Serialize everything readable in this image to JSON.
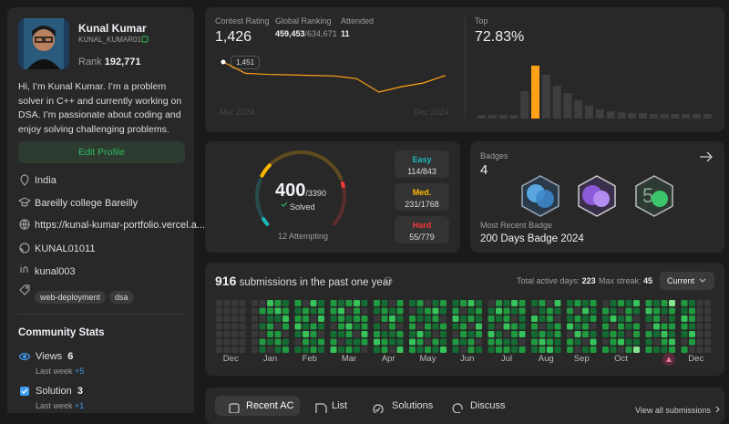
{
  "profile": {
    "name": "Kunal Kumar",
    "username": "KUNAL_KUMAR01",
    "rank_label": "Rank",
    "rank": "192,771",
    "bio": "Hi, I’m Kunal Kumar. I’m a problem solver in C++ and currently working on DSA. I’m passionate about coding and enjoy solving challenging problems.",
    "edit_button": "Edit Profile",
    "location": "India",
    "school": "Bareilly college Bareilly",
    "website": "https://kunal-kumar-portfolio.vercel.a...",
    "github": "KUNAL01011",
    "linkedin": "kunal003",
    "tags": [
      "web-deployment",
      "dsa"
    ]
  },
  "community": {
    "title": "Community Stats",
    "stats": [
      {
        "name": "Views",
        "value": "6",
        "period": "Last week",
        "change": "+5"
      },
      {
        "name": "Solution",
        "value": "3",
        "period": "Last week",
        "change": "+1"
      }
    ]
  },
  "contest": {
    "rating_label": "Contest Rating",
    "rating": "1,426",
    "ranking_label": "Global Ranking",
    "ranking": "459,453",
    "ranking_total": "/634,671",
    "attended_label": "Attended",
    "attended": "11",
    "chart": {
      "type": "line",
      "color": "#ffa116",
      "values": [
        1451,
        1430,
        1428,
        1427,
        1426,
        1425,
        1420,
        1395,
        1405,
        1412,
        1426
      ],
      "x_labels": [
        "Mar 2024",
        "Dec 2024"
      ],
      "tooltip": "1,451"
    },
    "top_label": "Top",
    "top": "72.83%",
    "histogram": {
      "type": "bar",
      "color": "#ffa116",
      "bar_color": "#3e3e3e",
      "highlight": 5,
      "values": [
        4,
        4,
        4,
        4,
        30,
        58,
        48,
        36,
        28,
        20,
        14,
        10,
        8,
        7,
        6,
        6,
        5,
        5,
        5,
        5,
        5,
        5
      ]
    }
  },
  "problems": {
    "solved": 400,
    "total": "/3390",
    "solved_label": "Solved",
    "attempting": "12 Attempting",
    "difficulties": [
      {
        "name": "Easy",
        "solved": 114,
        "total": 843,
        "label": "114/843",
        "color": "#1cbaba"
      },
      {
        "name": "Med.",
        "solved": 231,
        "total": 1768,
        "label": "231/1768",
        "color": "#ffb700"
      },
      {
        "name": "Hard",
        "solved": 55,
        "total": 779,
        "label": "55/779",
        "color": "#f63737"
      }
    ]
  },
  "badges": {
    "title": "Badges",
    "count": "4",
    "recent_label": "Most Recent Badge",
    "recent": "200 Days Badge 2024"
  },
  "heatmap": {
    "count": "916",
    "text": "submissions in the past one year",
    "active_label": "Total active days:",
    "active": "223",
    "streak_label": "Max streak:",
    "streak": "45",
    "dropdown": "Current",
    "level_colors": [
      "#393939",
      "#146c33",
      "#1f9a3f",
      "#35c35a",
      "#86e38f"
    ],
    "months": [
      {
        "label": "Dec",
        "weeks": [
          [
            0,
            0,
            0,
            0,
            0,
            0,
            0
          ],
          [
            0,
            0,
            0,
            0,
            0,
            0,
            0
          ],
          [
            0,
            0,
            0,
            0,
            0,
            0,
            0
          ],
          [
            0,
            0,
            0,
            0,
            0,
            0,
            0
          ]
        ]
      },
      {
        "label": "Jan",
        "weeks": [
          [
            0,
            0,
            0,
            0,
            0,
            0,
            0
          ],
          [
            0,
            2,
            0,
            1,
            0,
            2,
            1
          ],
          [
            3,
            2,
            1,
            2,
            2,
            1,
            0
          ],
          [
            2,
            3,
            1,
            0,
            2,
            2,
            1
          ],
          [
            1,
            2,
            3,
            2,
            0,
            1,
            2
          ]
        ]
      },
      {
        "label": "Feb",
        "weeks": [
          [
            2,
            1,
            2,
            3,
            1,
            0,
            1
          ],
          [
            0,
            2,
            2,
            1,
            3,
            2,
            1
          ],
          [
            3,
            1,
            0,
            2,
            2,
            1,
            2
          ],
          [
            1,
            2,
            3,
            1,
            0,
            2,
            1
          ]
        ]
      },
      {
        "label": "Mar",
        "weeks": [
          [
            2,
            2,
            1,
            0,
            1,
            2,
            3
          ],
          [
            1,
            3,
            2,
            2,
            1,
            0,
            1
          ],
          [
            2,
            0,
            1,
            3,
            2,
            1,
            2
          ],
          [
            3,
            2,
            2,
            1,
            0,
            1,
            1
          ],
          [
            1,
            0,
            2,
            2,
            3,
            2,
            0
          ]
        ]
      },
      {
        "label": "Apr",
        "weeks": [
          [
            2,
            1,
            0,
            1,
            2,
            3,
            1
          ],
          [
            1,
            2,
            2,
            0,
            1,
            2,
            2
          ],
          [
            0,
            1,
            3,
            2,
            1,
            1,
            0
          ],
          [
            2,
            2,
            1,
            0,
            2,
            1,
            3
          ]
        ]
      },
      {
        "label": "May",
        "weeks": [
          [
            1,
            0,
            2,
            2,
            1,
            3,
            2
          ],
          [
            2,
            1,
            1,
            0,
            3,
            2,
            1
          ],
          [
            0,
            2,
            1,
            2,
            1,
            0,
            2
          ],
          [
            1,
            3,
            2,
            1,
            0,
            2,
            1
          ],
          [
            2,
            1,
            0,
            2,
            1,
            1,
            3
          ]
        ]
      },
      {
        "label": "Jun",
        "weeks": [
          [
            1,
            2,
            3,
            1,
            0,
            2,
            1
          ],
          [
            2,
            0,
            1,
            2,
            2,
            1,
            0
          ],
          [
            3,
            1,
            2,
            0,
            1,
            2,
            2
          ],
          [
            1,
            2,
            1,
            3,
            2,
            0,
            1
          ]
        ]
      },
      {
        "label": "Jul",
        "weeks": [
          [
            0,
            1,
            2,
            1,
            3,
            2,
            1
          ],
          [
            2,
            3,
            1,
            0,
            1,
            2,
            2
          ],
          [
            1,
            2,
            2,
            3,
            0,
            1,
            2
          ],
          [
            3,
            1,
            0,
            2,
            2,
            1,
            1
          ],
          [
            2,
            2,
            1,
            1,
            3,
            0,
            2
          ]
        ]
      },
      {
        "label": "Aug",
        "weeks": [
          [
            1,
            0,
            3,
            2,
            1,
            2,
            1
          ],
          [
            2,
            1,
            1,
            0,
            2,
            3,
            2
          ],
          [
            0,
            2,
            2,
            1,
            1,
            2,
            3
          ],
          [
            3,
            1,
            0,
            2,
            2,
            1,
            1
          ]
        ]
      },
      {
        "label": "Sep",
        "weeks": [
          [
            1,
            2,
            1,
            3,
            0,
            2,
            2
          ],
          [
            2,
            0,
            2,
            1,
            3,
            1,
            0
          ],
          [
            1,
            3,
            1,
            2,
            2,
            0,
            1
          ],
          [
            2,
            1,
            2,
            0,
            1,
            3,
            2
          ]
        ]
      },
      {
        "label": "Oct",
        "weeks": [
          [
            0,
            2,
            1,
            2,
            1,
            0,
            2
          ],
          [
            1,
            1,
            3,
            0,
            2,
            2,
            1
          ],
          [
            2,
            0,
            1,
            2,
            1,
            3,
            0
          ],
          [
            1,
            2,
            2,
            1,
            0,
            1,
            2
          ],
          [
            3,
            1,
            0,
            2,
            2,
            1,
            4
          ]
        ]
      },
      {
        "label": null,
        "weeks": [
          [
            2,
            3,
            1,
            0,
            2,
            1,
            2
          ],
          [
            1,
            2,
            2,
            3,
            1,
            0,
            1
          ],
          [
            2,
            1,
            0,
            2,
            3,
            2,
            1
          ],
          [
            4,
            2,
            1,
            2,
            1,
            3,
            2
          ]
        ]
      },
      {
        "label": "Dec",
        "weeks": [
          [
            2,
            1,
            3,
            2,
            1,
            0,
            2
          ],
          [
            1,
            2,
            2,
            1,
            3,
            2,
            0
          ],
          [
            0,
            0,
            0,
            0,
            0,
            0,
            0
          ],
          [
            0,
            0,
            0,
            0,
            0,
            0,
            0
          ]
        ]
      }
    ]
  },
  "tabs": {
    "items": [
      "Recent AC",
      "List",
      "Solutions",
      "Discuss"
    ],
    "active": 0,
    "view_all": "View all submissions"
  }
}
